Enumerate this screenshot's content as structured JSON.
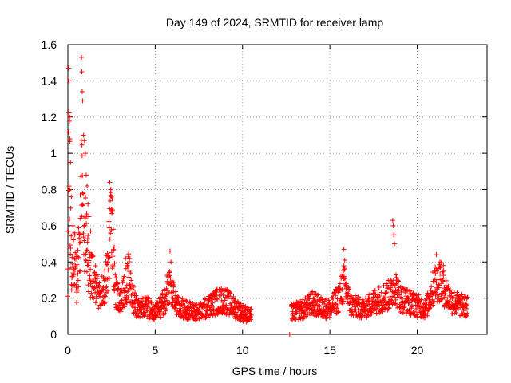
{
  "chart_data": {
    "type": "scatter",
    "title": "Day 149 of 2024, SRMTID for receiver lamp",
    "xlabel": "GPS time / hours",
    "ylabel": "SRMTID / TECUs",
    "xlim": [
      0,
      24
    ],
    "ylim": [
      0,
      1.6
    ],
    "xticks": [
      0,
      5,
      10,
      15,
      20
    ],
    "yticks": [
      0,
      0.2,
      0.4,
      0.6,
      0.8,
      1,
      1.2,
      1.4,
      1.6
    ],
    "xtick_labels": [
      "0",
      "5",
      "10",
      "15",
      "20"
    ],
    "ytick_labels": [
      "0",
      "0.2",
      "0.4",
      "0.6",
      "0.8",
      "1",
      "1.2",
      "1.4",
      "1.6"
    ],
    "grid": true,
    "marker": "+",
    "color": "#ff0000",
    "series": [
      {
        "name": "SRMTID",
        "segments": [
          {
            "start": 0.0,
            "end": 10.5,
            "step": 0.012
          },
          {
            "start": 12.7,
            "end": 12.7,
            "step": 0.012
          },
          {
            "start": 12.8,
            "end": 22.9,
            "step": 0.012
          }
        ],
        "profile": [
          [
            0.0,
            0.2
          ],
          [
            0.05,
            1.3
          ],
          [
            0.1,
            0.9
          ],
          [
            0.2,
            0.35
          ],
          [
            0.35,
            0.45
          ],
          [
            0.5,
            0.28
          ],
          [
            0.7,
            0.55
          ],
          [
            0.8,
            0.9
          ],
          [
            0.9,
            0.45
          ],
          [
            1.0,
            0.6
          ],
          [
            1.2,
            0.35
          ],
          [
            1.5,
            0.3
          ],
          [
            1.8,
            0.22
          ],
          [
            2.1,
            0.25
          ],
          [
            2.3,
            0.4
          ],
          [
            2.5,
            0.65
          ],
          [
            2.7,
            0.25
          ],
          [
            3.0,
            0.18
          ],
          [
            3.3,
            0.25
          ],
          [
            3.5,
            0.33
          ],
          [
            3.7,
            0.2
          ],
          [
            4.0,
            0.14
          ],
          [
            4.5,
            0.15
          ],
          [
            5.0,
            0.12
          ],
          [
            5.5,
            0.17
          ],
          [
            5.8,
            0.28
          ],
          [
            6.0,
            0.22
          ],
          [
            6.3,
            0.15
          ],
          [
            7.0,
            0.13
          ],
          [
            7.5,
            0.12
          ],
          [
            8.0,
            0.15
          ],
          [
            8.5,
            0.18
          ],
          [
            9.0,
            0.19
          ],
          [
            9.5,
            0.15
          ],
          [
            10.0,
            0.12
          ],
          [
            10.5,
            0.1
          ],
          [
            12.7,
            0.0
          ],
          [
            12.8,
            0.12
          ],
          [
            13.5,
            0.14
          ],
          [
            14.0,
            0.17
          ],
          [
            14.5,
            0.15
          ],
          [
            15.0,
            0.14
          ],
          [
            15.5,
            0.2
          ],
          [
            15.8,
            0.28
          ],
          [
            16.2,
            0.16
          ],
          [
            17.0,
            0.14
          ],
          [
            17.5,
            0.18
          ],
          [
            18.0,
            0.2
          ],
          [
            18.5,
            0.22
          ],
          [
            18.7,
            0.28
          ],
          [
            19.0,
            0.2
          ],
          [
            19.5,
            0.18
          ],
          [
            20.0,
            0.16
          ],
          [
            20.5,
            0.14
          ],
          [
            21.0,
            0.28
          ],
          [
            21.3,
            0.3
          ],
          [
            21.7,
            0.22
          ],
          [
            22.0,
            0.18
          ],
          [
            22.5,
            0.16
          ],
          [
            22.9,
            0.15
          ]
        ],
        "spikes": [
          [
            0.04,
            1.47
          ],
          [
            0.06,
            1.4
          ],
          [
            0.1,
            1.2
          ],
          [
            0.12,
            1.08
          ],
          [
            0.15,
            0.95
          ],
          [
            0.2,
            0.76
          ],
          [
            0.3,
            0.6
          ],
          [
            0.4,
            0.55
          ],
          [
            0.78,
            1.53
          ],
          [
            0.8,
            1.45
          ],
          [
            0.82,
            1.34
          ],
          [
            0.85,
            1.29
          ],
          [
            0.9,
            1.1
          ],
          [
            0.95,
            1.07
          ],
          [
            1.0,
            1.0
          ],
          [
            1.05,
            0.88
          ],
          [
            1.1,
            0.82
          ],
          [
            1.15,
            0.72
          ],
          [
            1.2,
            0.65
          ],
          [
            1.3,
            0.57
          ],
          [
            2.4,
            0.84
          ],
          [
            2.45,
            0.8
          ],
          [
            2.5,
            0.76
          ],
          [
            2.55,
            0.68
          ],
          [
            2.6,
            0.58
          ],
          [
            3.3,
            0.42
          ],
          [
            3.4,
            0.38
          ],
          [
            5.85,
            0.46
          ],
          [
            5.9,
            0.4
          ],
          [
            15.8,
            0.47
          ],
          [
            15.85,
            0.41
          ],
          [
            18.6,
            0.63
          ],
          [
            18.63,
            0.6
          ],
          [
            18.66,
            0.55
          ],
          [
            18.7,
            0.5
          ],
          [
            21.1,
            0.44
          ],
          [
            21.3,
            0.4
          ],
          [
            21.5,
            0.38
          ]
        ]
      }
    ]
  }
}
